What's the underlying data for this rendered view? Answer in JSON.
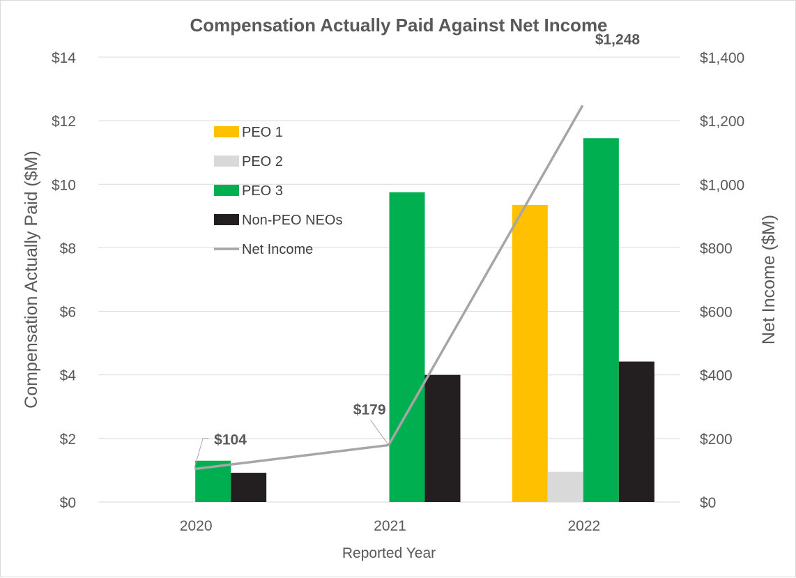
{
  "chart_data": {
    "type": "bar",
    "title": "Compensation Actually Paid Against Net Income",
    "xlabel": "Reported Year",
    "ylabel": "Compensation Actually Paid ($M)",
    "y2label": "Net Income ($M)",
    "categories": [
      "2020",
      "2021",
      "2022"
    ],
    "ylim": [
      0,
      14
    ],
    "y2lim": [
      0,
      1400
    ],
    "yticks": [
      "$0",
      "$2",
      "$4",
      "$6",
      "$8",
      "$10",
      "$12",
      "$14"
    ],
    "y2ticks": [
      "$0",
      "$200",
      "$400",
      "$600",
      "$800",
      "$1,000",
      "$1,200",
      "$1,400"
    ],
    "grid": true,
    "legend_position": "upper-left-inside",
    "series": [
      {
        "name": "PEO 1",
        "type": "bar",
        "color": "#FFC000",
        "values": [
          null,
          null,
          9.35
        ]
      },
      {
        "name": "PEO 2",
        "type": "bar",
        "color": "#D9D9D9",
        "values": [
          null,
          null,
          0.95
        ]
      },
      {
        "name": "PEO 3",
        "type": "bar",
        "color": "#00B050",
        "values": [
          1.3,
          9.75,
          11.45
        ]
      },
      {
        "name": "Non-PEO NEOs",
        "type": "bar",
        "color": "#231F20",
        "values": [
          0.92,
          4.0,
          4.42
        ]
      },
      {
        "name": "Net Income",
        "type": "line",
        "axis": "secondary",
        "color": "#A6A6A6",
        "values": [
          104,
          179,
          1248
        ],
        "labels": [
          "$104",
          "$179",
          "$1,248"
        ]
      }
    ]
  }
}
